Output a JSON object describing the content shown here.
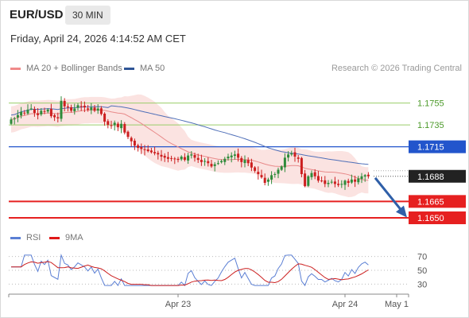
{
  "header": {
    "symbol": "EUR/USD",
    "timeframe": "30 MIN",
    "datetime": "Friday, April 24, 2026 4:14:52 AM CET"
  },
  "legend": {
    "ma20_bb": "MA 20 + Bollinger Bands",
    "ma50": "MA 50",
    "credit": "Research © 2026 Trading Central"
  },
  "rsi_legend": {
    "rsi": "RSI",
    "ma9": "9MA"
  },
  "colors": {
    "bull": "#2e8b3a",
    "bear": "#cc1f1f",
    "ma20": "#e88a8a",
    "ma50": "#4f6fb8",
    "bb_fill": "#fbe3e1",
    "resistance_green": "#9acd6a",
    "pivot_blue": "#2255cc",
    "support_red": "#e62020",
    "rsi": "#5b7fd4",
    "rsi_ma": "#cc1f1f",
    "arrow": "#2f5fa8"
  },
  "chart_data": [
    {
      "type": "candlestick",
      "x_ticks": [
        "Apr 23",
        "Apr 24",
        "May 1"
      ],
      "ylim": [
        1.1642,
        1.1778
      ],
      "levels": [
        {
          "label": "1.1755",
          "value": 1.1755,
          "kind": "resistance"
        },
        {
          "label": "1.1735",
          "value": 1.1735,
          "kind": "resistance"
        },
        {
          "label": "1.1715",
          "value": 1.1715,
          "kind": "pivot"
        },
        {
          "label": "1.1688",
          "value": 1.1688,
          "kind": "last"
        },
        {
          "label": "1.1665",
          "value": 1.1665,
          "kind": "support"
        },
        {
          "label": "1.1650",
          "value": 1.165,
          "kind": "support"
        }
      ],
      "forecast": {
        "from": 1.1688,
        "to": 1.1651
      },
      "close": [
        1.174,
        1.1741,
        1.1744,
        1.1747,
        1.1746,
        1.1749,
        1.175,
        1.1746,
        1.1744,
        1.1748,
        1.1747,
        1.1749,
        1.1743,
        1.1742,
        1.1741,
        1.1757,
        1.1752,
        1.1751,
        1.1748,
        1.175,
        1.1753,
        1.1752,
        1.1751,
        1.1749,
        1.1751,
        1.1748,
        1.175,
        1.1745,
        1.1738,
        1.1735,
        1.1734,
        1.1737,
        1.1733,
        1.1736,
        1.1728,
        1.1724,
        1.172,
        1.1716,
        1.1714,
        1.1713,
        1.1712,
        1.1711,
        1.171,
        1.1709,
        1.1708,
        1.1706,
        1.1705,
        1.1704,
        1.1704,
        1.1704,
        1.1703,
        1.1706,
        1.1703,
        1.1707,
        1.1708,
        1.1705,
        1.1703,
        1.1701,
        1.1702,
        1.17,
        1.1697,
        1.1699,
        1.17,
        1.1702,
        1.1704,
        1.1706,
        1.1707,
        1.1708,
        1.1705,
        1.1701,
        1.1703,
        1.17,
        1.1696,
        1.1693,
        1.169,
        1.1687,
        1.1682,
        1.1685,
        1.1689,
        1.169,
        1.1694,
        1.1697,
        1.1705,
        1.1708,
        1.1709,
        1.1706,
        1.1704,
        1.169,
        1.1679,
        1.1688,
        1.1691,
        1.1688,
        1.1684,
        1.1684,
        1.1681,
        1.1682,
        1.1683,
        1.1681,
        1.168,
        1.1681,
        1.1684,
        1.1682,
        1.1685,
        1.1683,
        1.1686,
        1.1688,
        1.1689,
        1.1688
      ],
      "rsi": {
        "ylim": [
          20,
          80
        ],
        "ticks": [
          70,
          50,
          30
        ]
      }
    }
  ]
}
